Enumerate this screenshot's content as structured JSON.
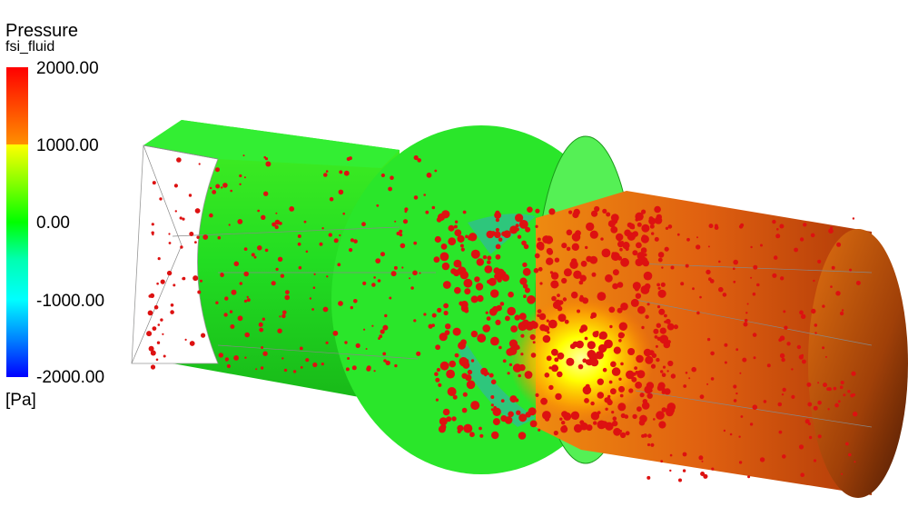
{
  "legend": {
    "title": "Pressure",
    "subtitle": "fsi_fluid",
    "ticks": [
      "2000.00",
      "1000.00",
      "0.00",
      "-1000.00",
      "-2000.00"
    ],
    "unit": "[Pa]",
    "colors": {
      "max": "#ff0000",
      "mid_high": "#ffff00",
      "zero": "#00ff00",
      "mid_low": "#00ffff",
      "min": "#0000ff"
    }
  },
  "scene": {
    "subject": "fluid pressure field in pipe with spherical bulge and particles",
    "inlet_color": "#22dd22",
    "outlet_color": "#e06010",
    "particle_color": "#dd1111"
  }
}
